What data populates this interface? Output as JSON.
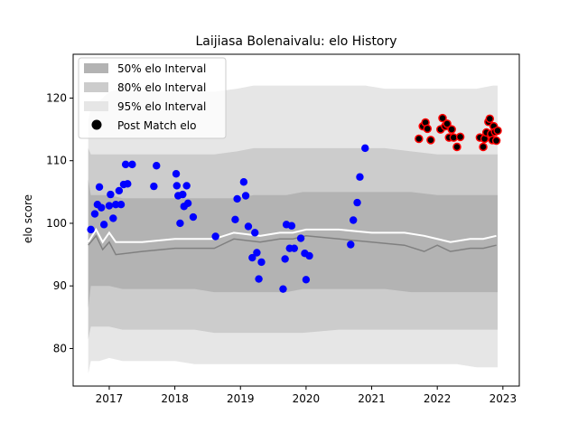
{
  "chart_data": {
    "type": "scatter",
    "title": "Laijiasa Bolenaivalu: elo History",
    "xlabel": "",
    "ylabel": "elo score",
    "xlim": [
      2016.45,
      2023.25
    ],
    "ylim": [
      74.0,
      127.0
    ],
    "x_ticks": [
      2017,
      2018,
      2019,
      2020,
      2021,
      2022,
      2023
    ],
    "y_ticks": [
      80,
      90,
      100,
      110,
      120
    ],
    "legend": {
      "placement": "top-left",
      "entries": [
        "50% elo Interval",
        "80% elo Interval",
        "95% elo Interval",
        "Post Match elo"
      ]
    },
    "colors": {
      "band50": "#b3b3b3",
      "band80": "#cccccc",
      "band95": "#e6e6e6",
      "mean_line": "#ffffff",
      "median_line": "#808080",
      "points_early": "#0000ff",
      "points_late": "#000000",
      "points_late_edge": "#ff0000"
    },
    "intervals": {
      "x": [
        2016.68,
        2016.72,
        2016.85,
        2017.0,
        2017.2,
        2017.6,
        2018.0,
        2018.3,
        2018.6,
        2018.95,
        2019.2,
        2019.5,
        2019.7,
        2019.95,
        2020.5,
        2020.9,
        2021.2,
        2021.6,
        2022.0,
        2022.3,
        2022.6,
        2022.85,
        2022.92
      ],
      "p50_lo": [
        86.5,
        90.0,
        90.0,
        90.0,
        89.5,
        89.5,
        89.5,
        89.5,
        89.0,
        89.0,
        89.0,
        89.0,
        89.0,
        89.5,
        89.5,
        89.5,
        89.5,
        89.0,
        89.0,
        89.0,
        89.0,
        89.0,
        89.0
      ],
      "p50_hi": [
        107.0,
        104.5,
        104.5,
        104.5,
        104.0,
        104.0,
        104.0,
        104.0,
        104.0,
        104.0,
        104.5,
        104.5,
        104.5,
        105.0,
        105.0,
        105.0,
        105.0,
        105.0,
        104.5,
        104.5,
        104.5,
        104.5,
        104.5
      ],
      "p80_lo": [
        81.5,
        83.5,
        83.5,
        83.5,
        83.0,
        83.0,
        83.0,
        83.0,
        82.5,
        82.5,
        82.5,
        82.5,
        82.5,
        82.5,
        83.0,
        83.0,
        83.0,
        83.0,
        83.0,
        83.0,
        83.0,
        83.0,
        83.0
      ],
      "p80_hi": [
        112.0,
        111.0,
        111.0,
        111.0,
        111.0,
        111.0,
        111.0,
        111.0,
        111.0,
        111.5,
        112.0,
        112.0,
        112.0,
        112.0,
        112.0,
        112.0,
        112.0,
        111.5,
        111.0,
        111.0,
        111.0,
        111.0,
        111.0
      ],
      "p95_lo": [
        76.0,
        78.0,
        78.0,
        78.5,
        78.0,
        78.0,
        78.0,
        77.5,
        77.5,
        77.5,
        77.5,
        77.5,
        77.5,
        77.5,
        77.5,
        77.5,
        77.5,
        77.5,
        77.5,
        77.5,
        77.0,
        77.0,
        77.0
      ],
      "p95_hi": [
        116.5,
        118.5,
        119.5,
        121.0,
        121.5,
        121.0,
        121.0,
        121.0,
        121.0,
        121.5,
        122.0,
        122.0,
        122.0,
        122.0,
        122.0,
        122.0,
        121.5,
        121.5,
        121.5,
        121.5,
        121.5,
        122.0,
        122.0
      ]
    },
    "mean_line": {
      "x": [
        2016.68,
        2016.8,
        2016.9,
        2017.0,
        2017.1,
        2017.5,
        2018.0,
        2018.6,
        2018.9,
        2019.3,
        2019.6,
        2019.8,
        2020.0,
        2020.5,
        2021.0,
        2021.5,
        2021.8,
        2022.0,
        2022.2,
        2022.5,
        2022.7,
        2022.9
      ],
      "y": [
        97.0,
        99.0,
        97.0,
        98.5,
        97.0,
        97.0,
        97.5,
        97.5,
        98.5,
        98.0,
        98.5,
        98.5,
        99.0,
        99.0,
        98.5,
        98.5,
        98.0,
        97.5,
        97.0,
        97.5,
        97.5,
        98.0
      ]
    },
    "median_line": {
      "x": [
        2016.68,
        2016.8,
        2016.9,
        2017.0,
        2017.1,
        2017.5,
        2018.0,
        2018.6,
        2018.9,
        2019.3,
        2019.6,
        2019.8,
        2020.0,
        2020.5,
        2021.0,
        2021.5,
        2021.8,
        2022.0,
        2022.2,
        2022.5,
        2022.7,
        2022.9
      ],
      "y": [
        96.5,
        98.0,
        95.8,
        97.0,
        95.0,
        95.5,
        96.0,
        96.0,
        97.5,
        97.0,
        97.5,
        97.5,
        98.0,
        97.5,
        97.0,
        96.5,
        95.5,
        96.5,
        95.5,
        96.0,
        96.0,
        96.5
      ]
    },
    "points_early": [
      [
        2016.72,
        99.0
      ],
      [
        2016.78,
        101.5
      ],
      [
        2016.82,
        103.0
      ],
      [
        2016.85,
        105.8
      ],
      [
        2016.88,
        102.5
      ],
      [
        2016.92,
        99.8
      ],
      [
        2017.0,
        102.8
      ],
      [
        2017.02,
        104.6
      ],
      [
        2017.06,
        100.8
      ],
      [
        2017.1,
        103.0
      ],
      [
        2017.15,
        105.2
      ],
      [
        2017.18,
        103.0
      ],
      [
        2017.22,
        106.2
      ],
      [
        2017.25,
        109.4
      ],
      [
        2017.28,
        106.3
      ],
      [
        2017.35,
        109.4
      ],
      [
        2017.68,
        105.9
      ],
      [
        2017.72,
        109.2
      ],
      [
        2018.02,
        107.9
      ],
      [
        2018.03,
        106.0
      ],
      [
        2018.05,
        104.4
      ],
      [
        2018.08,
        100.0
      ],
      [
        2018.12,
        104.6
      ],
      [
        2018.14,
        102.7
      ],
      [
        2018.18,
        106.0
      ],
      [
        2018.2,
        103.2
      ],
      [
        2018.28,
        101.0
      ],
      [
        2018.62,
        97.9
      ],
      [
        2018.92,
        100.6
      ],
      [
        2018.95,
        103.9
      ],
      [
        2019.05,
        106.6
      ],
      [
        2019.08,
        104.4
      ],
      [
        2019.12,
        99.5
      ],
      [
        2019.18,
        94.5
      ],
      [
        2019.22,
        98.5
      ],
      [
        2019.25,
        95.3
      ],
      [
        2019.28,
        91.1
      ],
      [
        2019.32,
        93.8
      ],
      [
        2019.65,
        89.5
      ],
      [
        2019.68,
        94.3
      ],
      [
        2019.7,
        99.8
      ],
      [
        2019.75,
        96.0
      ],
      [
        2019.78,
        99.6
      ],
      [
        2019.82,
        96.0
      ],
      [
        2019.92,
        97.6
      ],
      [
        2019.98,
        95.2
      ],
      [
        2020.0,
        91.0
      ],
      [
        2020.05,
        94.8
      ],
      [
        2020.68,
        96.6
      ],
      [
        2020.72,
        100.5
      ],
      [
        2020.78,
        103.3
      ],
      [
        2020.82,
        107.4
      ],
      [
        2020.9,
        112.0
      ]
    ],
    "points_late": [
      [
        2021.72,
        113.5
      ],
      [
        2021.78,
        115.5
      ],
      [
        2021.82,
        116.1
      ],
      [
        2021.85,
        115.1
      ],
      [
        2021.9,
        113.3
      ],
      [
        2022.05,
        115.0
      ],
      [
        2022.08,
        116.8
      ],
      [
        2022.12,
        115.5
      ],
      [
        2022.15,
        115.9
      ],
      [
        2022.18,
        113.7
      ],
      [
        2022.22,
        115.0
      ],
      [
        2022.25,
        113.7
      ],
      [
        2022.3,
        112.2
      ],
      [
        2022.35,
        113.8
      ],
      [
        2022.65,
        113.7
      ],
      [
        2022.7,
        112.2
      ],
      [
        2022.72,
        113.5
      ],
      [
        2022.75,
        114.5
      ],
      [
        2022.78,
        116.2
      ],
      [
        2022.8,
        116.7
      ],
      [
        2022.82,
        114.3
      ],
      [
        2022.84,
        113.3
      ],
      [
        2022.86,
        115.5
      ],
      [
        2022.88,
        114.6
      ],
      [
        2022.9,
        113.2
      ],
      [
        2022.92,
        114.8
      ]
    ]
  }
}
